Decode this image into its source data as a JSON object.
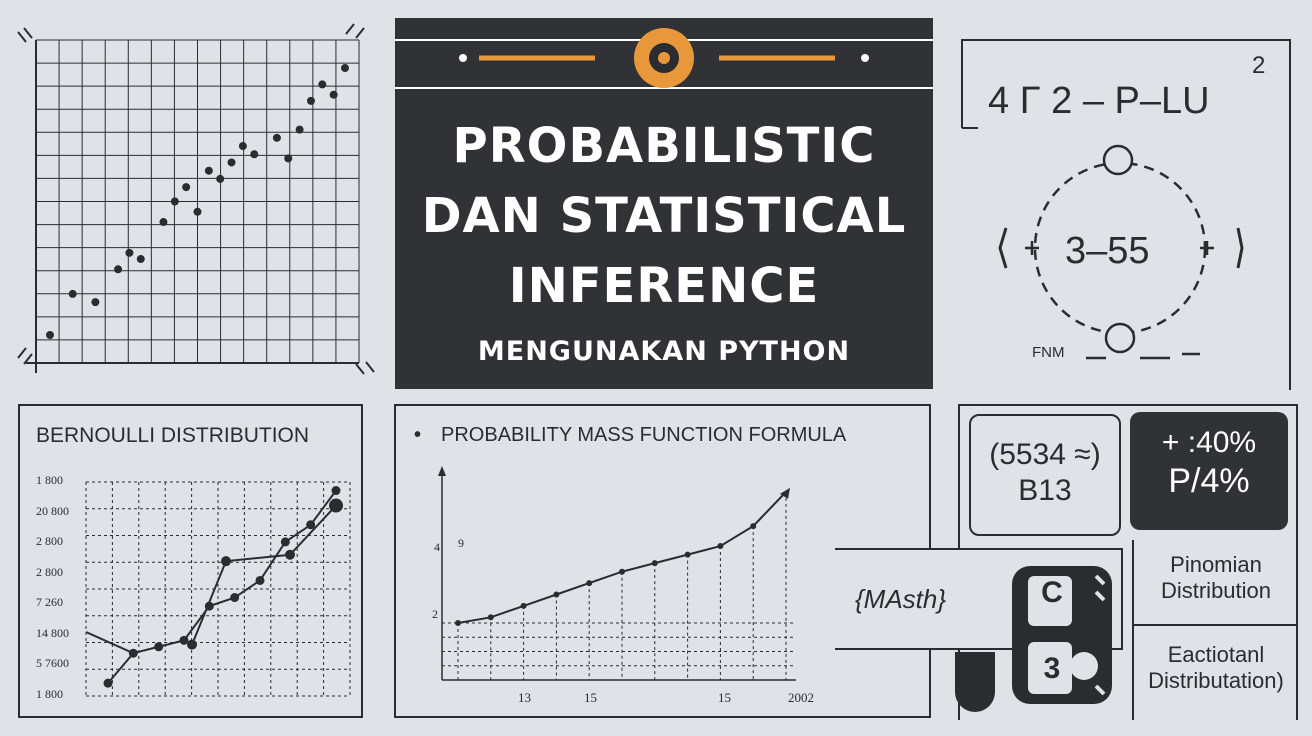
{
  "title": {
    "line1": "PROBABILISTIC",
    "line2": "DAN STATISTICAL",
    "line3": "INFERENCE",
    "subtitle": "MENGUNAKAN PYTHON"
  },
  "formula": {
    "equation": "4 Γ 2 – P–LU",
    "exponent": "2",
    "circle_value": "3–55",
    "fnm_label": "FNM"
  },
  "bernoulli": {
    "title": "BERNOULLI DISTRIBUTION",
    "y_ticks": [
      "1 800",
      "20 800",
      "2 800",
      "2 800",
      "7 260",
      "14 800",
      "5 7600",
      "1 800"
    ]
  },
  "pmf": {
    "title": "PROBABILITY MASS FUNCTION FORMULA",
    "y_ticks": [
      "4",
      "9",
      "2"
    ],
    "x_ticks": [
      "13",
      "15",
      "15",
      "2002"
    ]
  },
  "cards": {
    "card1_line1": "(5534 ≈)",
    "card1_line2": "B13",
    "card2_line1": "+ :40%",
    "card2_line2": "P/4%",
    "math_label": "{MAsth}",
    "binomial_line1": "Pinomian",
    "binomial_line2": "Distribution",
    "eactiotanl_line1": "Eactiotanl",
    "eactiotanl_line2": "Distributation)",
    "block_letter_top": "C",
    "block_letter_bottom": "3"
  },
  "colors": {
    "background": "#dfe2e7",
    "dark_panel": "#313236",
    "accent_orange": "#e8983a",
    "ink": "#2b2c30"
  },
  "chart_data": [
    {
      "type": "scatter",
      "title": "",
      "points": [
        [
          1,
          1
        ],
        [
          2,
          3
        ],
        [
          3,
          2.6
        ],
        [
          4,
          4.2
        ],
        [
          4.5,
          5
        ],
        [
          5,
          4.7
        ],
        [
          6,
          6.5
        ],
        [
          6.5,
          7.5
        ],
        [
          7,
          8.2
        ],
        [
          7.5,
          7
        ],
        [
          8,
          9
        ],
        [
          8.5,
          8.6
        ],
        [
          9,
          9.4
        ],
        [
          9.5,
          10.2
        ],
        [
          10,
          9.8
        ],
        [
          11,
          10.6
        ],
        [
          11.5,
          9.6
        ],
        [
          12,
          11
        ],
        [
          12.5,
          12.4
        ],
        [
          13,
          13.2
        ],
        [
          13.5,
          12.7
        ],
        [
          14,
          14
        ]
      ],
      "grid": true
    },
    {
      "type": "line",
      "title": "BERNOULLI DISTRIBUTION",
      "series": [
        {
          "values": [
            0.6,
            2.0,
            2.3,
            2.6,
            4.2,
            4.6,
            5.4,
            7.2,
            8.0,
            9.6
          ]
        },
        {
          "values": [
            2.4,
            6.3,
            6.6,
            8.9
          ]
        }
      ],
      "grid": true
    },
    {
      "type": "line",
      "title": "PROBABILITY MASS FUNCTION FORMULA",
      "series": [
        {
          "values": [
            2,
            2.2,
            2.6,
            3.0,
            3.4,
            3.8,
            4.1,
            4.4,
            4.7,
            5.4,
            6.6
          ]
        }
      ],
      "grid": true
    }
  ]
}
